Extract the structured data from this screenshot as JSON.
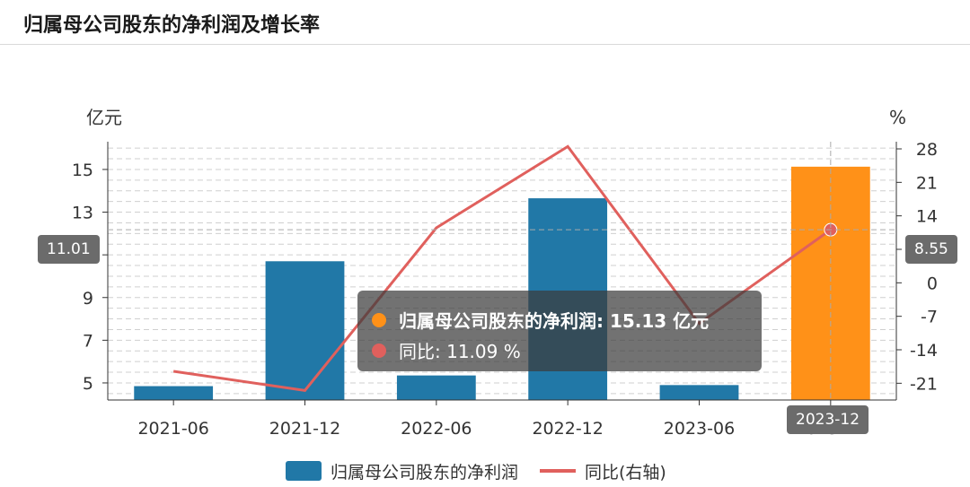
{
  "header": {
    "title": "归属母公司股东的净利润及增长率"
  },
  "chart_data": {
    "type": "bar",
    "categories": [
      "2021-06",
      "2021-12",
      "2022-06",
      "2022-12",
      "2023-06",
      "2023-12"
    ],
    "series": [
      {
        "name": "归属母公司股东的净利润",
        "type": "bar",
        "axis": "left",
        "unit": "亿元",
        "values": [
          4.85,
          10.7,
          5.35,
          13.65,
          4.9,
          15.13
        ]
      },
      {
        "name": "同比(右轴)",
        "type": "line",
        "axis": "right",
        "unit": "%",
        "values": [
          -18.5,
          -22.5,
          11.5,
          28.5,
          -8.5,
          11.09
        ]
      }
    ],
    "left_axis": {
      "unit_label": "亿元",
      "ticks": [
        5,
        7,
        9,
        11,
        13,
        15
      ],
      "ylim": [
        4.2,
        16.3
      ]
    },
    "right_axis": {
      "unit_label": "%",
      "ticks": [
        -21,
        -14,
        -7,
        0,
        7,
        14,
        21,
        28
      ],
      "ylim": [
        -24.5,
        29.5
      ]
    },
    "highlight_index": 5,
    "colors": {
      "bar": "#2178a7",
      "bar_highlight": "#ff9118",
      "line": "#e0605d",
      "grid": "#cfcfcf",
      "axis": "#333333"
    },
    "grid": true,
    "legend_position": "bottom"
  },
  "crosshair": {
    "left_value": "11.01",
    "right_value": "8.55",
    "category": "2023-12"
  },
  "tooltip": {
    "bar_label": "归属母公司股东的净利润: 15.13  亿元",
    "line_label": "同比: 11.09  %"
  },
  "legend": {
    "bar_label": "归属母公司股东的净利润",
    "line_label": "同比(右轴)"
  }
}
